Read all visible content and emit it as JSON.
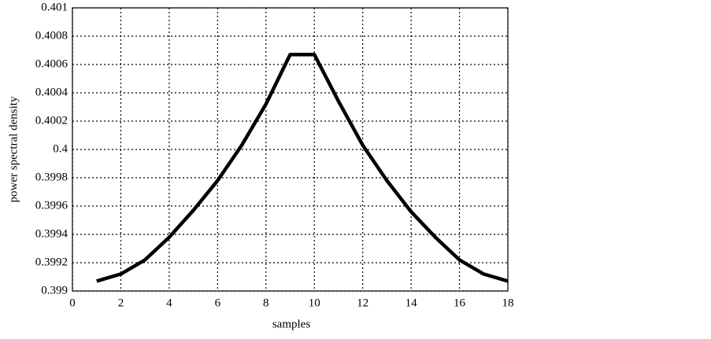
{
  "chart_data": {
    "type": "line",
    "x_label": "samples",
    "y_label": "power spectral density",
    "x": [
      1,
      2,
      3,
      4,
      5,
      6,
      7,
      8,
      9,
      10,
      11,
      12,
      13,
      14,
      15,
      16,
      17,
      18
    ],
    "series": [
      {
        "color": "#000000",
        "values": [
          0.39907,
          0.39912,
          0.39922,
          0.39938,
          0.39957,
          0.39978,
          0.40003,
          0.40032,
          0.40067,
          0.40067,
          0.40034,
          0.40003,
          0.39978,
          0.39956,
          0.39938,
          0.39922,
          0.39912,
          0.39907
        ]
      }
    ],
    "xlim": [
      0,
      18
    ],
    "xticks": [
      0,
      2,
      4,
      6,
      8,
      10,
      12,
      14,
      16,
      18
    ],
    "ylim": [
      0.399,
      0.401
    ],
    "yticks": [
      0.399,
      0.3992,
      0.3994,
      0.3996,
      0.3998,
      0.4,
      0.4002,
      0.4004,
      0.4006,
      0.4008,
      0.401
    ],
    "grid": true
  }
}
